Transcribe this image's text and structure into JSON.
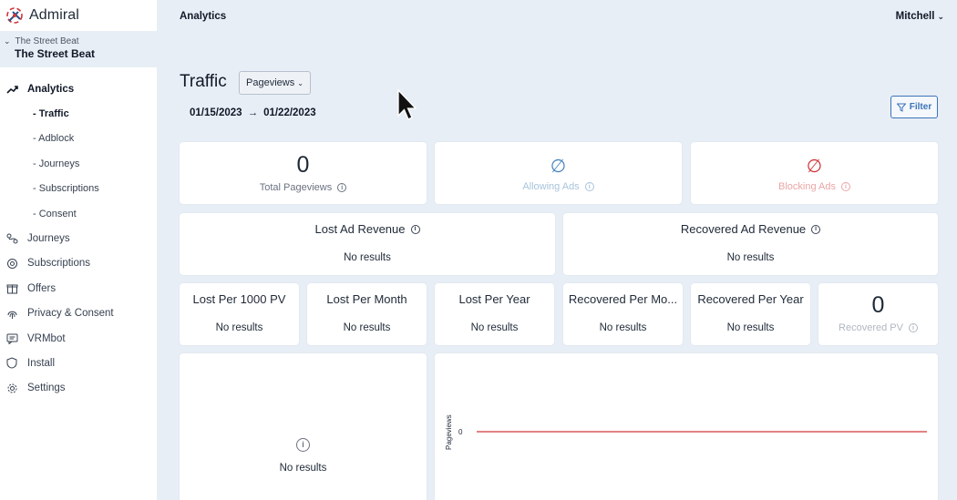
{
  "brand": {
    "name": "Admiral"
  },
  "site": {
    "sub": "The Street Beat",
    "main": "The Street Beat"
  },
  "nav": {
    "analytics": "Analytics",
    "sub": [
      "- Traffic",
      "- Adblock",
      "- Journeys",
      "- Subscriptions",
      "- Consent"
    ],
    "items": [
      "Journeys",
      "Subscriptions",
      "Offers",
      "Privacy & Consent",
      "VRMbot",
      "Install",
      "Settings"
    ]
  },
  "header": {
    "title": "Analytics",
    "user": "Mitchell"
  },
  "page": {
    "title": "Traffic",
    "metric_select": "Pageviews",
    "date_start": "01/15/2023",
    "date_end": "01/22/2023",
    "filter_label": "Filter"
  },
  "cards": {
    "total_pageviews": {
      "value": "0",
      "label": "Total Pageviews"
    },
    "allowing_ads": {
      "symbol": "∅",
      "label": "Allowing Ads"
    },
    "blocking_ads": {
      "symbol": "∅",
      "label": "Blocking Ads"
    },
    "lost_ad_revenue": {
      "title": "Lost Ad Revenue",
      "value": "No results"
    },
    "recovered_ad_revenue": {
      "title": "Recovered Ad Revenue",
      "value": "No results"
    },
    "lost_per_1000": {
      "title": "Lost Per 1000 PV",
      "value": "No results"
    },
    "lost_per_month": {
      "title": "Lost Per Month",
      "value": "No results"
    },
    "lost_per_year": {
      "title": "Lost Per Year",
      "value": "No results"
    },
    "recovered_per_month": {
      "title": "Recovered Per Mo...",
      "value": "No results"
    },
    "recovered_per_year": {
      "title": "Recovered Per Year",
      "value": "No results"
    },
    "recovered_pv": {
      "value": "0",
      "label": "Recovered PV"
    },
    "left_panel": {
      "value": "No results"
    }
  },
  "chart_data": {
    "type": "line",
    "ylabel": "Pageviews",
    "y_ticks": [
      "0"
    ],
    "series": [
      {
        "values": [
          0,
          0
        ]
      }
    ]
  },
  "colors": {
    "accent": "#3b73b9",
    "background": "#e8eef6",
    "line": "#d0373a"
  }
}
